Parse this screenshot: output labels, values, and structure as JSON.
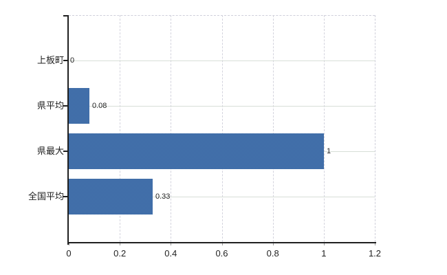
{
  "chart_data": {
    "type": "bar",
    "orientation": "horizontal",
    "title": "",
    "xlabel": "",
    "ylabel": "",
    "categories": [
      "上板町",
      "県平均",
      "県最大",
      "全国平均"
    ],
    "values": [
      0,
      0.08,
      1,
      0.33
    ],
    "value_labels": [
      "0",
      "0.08",
      "1",
      "0.33"
    ],
    "xlim": [
      0,
      1.2
    ],
    "x_tick_values": [
      0,
      0.2,
      0.4,
      0.6,
      0.8,
      1,
      1.2
    ],
    "x_tick_labels": [
      "0",
      "0.2",
      "0.4",
      "0.6",
      "0.8",
      "1",
      "1.2"
    ],
    "grid": true,
    "legend_position": "none",
    "colors": {
      "bar_base": "#38659f",
      "bar_dither": "#4a78b3",
      "axis": "#1f1f1f",
      "h_gridline": "#d7ded7",
      "v_gridline": "#d3d3dd",
      "dashed_border": "#cfcfda",
      "text": "#1f1f1f",
      "background": "#ffffff"
    }
  }
}
